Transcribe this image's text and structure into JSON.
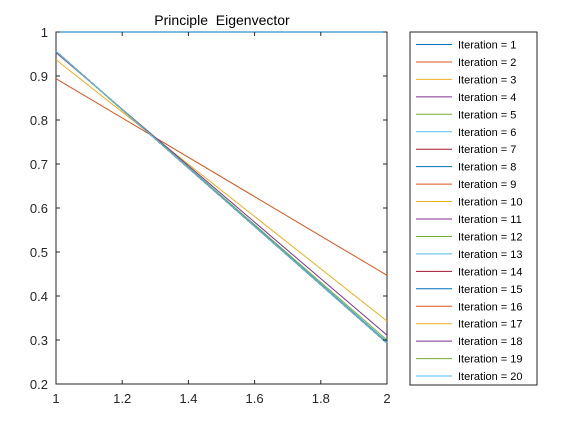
{
  "chart_data": {
    "type": "line",
    "title": "Principle  Eigenvector",
    "xlabel": "",
    "ylabel": "",
    "xlim": [
      1,
      2
    ],
    "ylim": [
      0.2,
      1
    ],
    "xticks": [
      1,
      1.2,
      1.4,
      1.6,
      1.8,
      2
    ],
    "xtick_labels": [
      "1",
      "1.2",
      "1.4",
      "1.6",
      "1.8",
      "2"
    ],
    "yticks": [
      0.2,
      0.3,
      0.4,
      0.5,
      0.6,
      0.7,
      0.8,
      0.9,
      1
    ],
    "ytick_labels": [
      "0.2",
      "0.3",
      "0.4",
      "0.5",
      "0.6",
      "0.7",
      "0.8",
      "0.9",
      "1"
    ],
    "grid": false,
    "legend_position": "outside-right",
    "x": [
      1,
      2
    ],
    "series": [
      {
        "name": "Iteration = 1",
        "color": "#0072BD",
        "values": [
          1.0,
          1.0
        ]
      },
      {
        "name": "Iteration = 2",
        "color": "#D95319",
        "values": [
          0.894,
          0.447
        ]
      },
      {
        "name": "Iteration = 3",
        "color": "#EDB120",
        "values": [
          0.937,
          0.343
        ]
      },
      {
        "name": "Iteration = 4",
        "color": "#7E2F8E",
        "values": [
          0.953,
          0.311
        ]
      },
      {
        "name": "Iteration = 5",
        "color": "#77AC30",
        "values": [
          0.955,
          0.3
        ]
      },
      {
        "name": "Iteration = 6",
        "color": "#4DBEEE",
        "values": [
          0.956,
          0.296
        ]
      },
      {
        "name": "Iteration = 7",
        "color": "#A2142F",
        "values": [
          0.956,
          0.294
        ]
      },
      {
        "name": "Iteration = 8",
        "color": "#0072BD",
        "values": [
          0.956,
          0.293
        ]
      },
      {
        "name": "Iteration = 9",
        "color": "#D95319",
        "values": [
          0.956,
          0.293
        ]
      },
      {
        "name": "Iteration = 10",
        "color": "#EDB120",
        "values": [
          0.956,
          0.293
        ]
      },
      {
        "name": "Iteration = 11",
        "color": "#7E2F8E",
        "values": [
          0.956,
          0.293
        ]
      },
      {
        "name": "Iteration = 12",
        "color": "#77AC30",
        "values": [
          0.956,
          0.293
        ]
      },
      {
        "name": "Iteration = 13",
        "color": "#4DBEEE",
        "values": [
          0.956,
          0.293
        ]
      },
      {
        "name": "Iteration = 14",
        "color": "#A2142F",
        "values": [
          0.956,
          0.293
        ]
      },
      {
        "name": "Iteration = 15",
        "color": "#0072BD",
        "values": [
          0.956,
          0.293
        ]
      },
      {
        "name": "Iteration = 16",
        "color": "#D95319",
        "values": [
          0.956,
          0.293
        ]
      },
      {
        "name": "Iteration = 17",
        "color": "#EDB120",
        "values": [
          0.956,
          0.293
        ]
      },
      {
        "name": "Iteration = 18",
        "color": "#7E2F8E",
        "values": [
          0.956,
          0.293
        ]
      },
      {
        "name": "Iteration = 19",
        "color": "#77AC30",
        "values": [
          0.956,
          0.293
        ]
      },
      {
        "name": "Iteration = 20",
        "color": "#4DBEEE",
        "values": [
          0.956,
          0.293
        ]
      }
    ]
  }
}
